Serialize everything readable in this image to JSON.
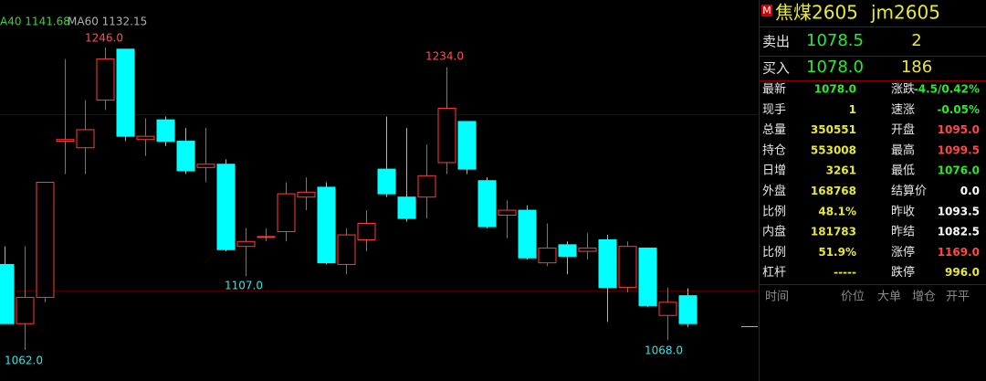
{
  "chart_data": {
    "type": "candlestick",
    "ma_labels": [
      "A40 1141.68",
      "MA60 1132.15"
    ],
    "extreme_labels": [
      "1246.0",
      "1234.0",
      "1107.0",
      "1062.0",
      "1068.0"
    ],
    "open": [
      1114,
      1078,
      1094,
      1189,
      1185,
      1214,
      1245,
      1190,
      1202,
      1189,
      1173,
      1175,
      1125,
      1131,
      1134,
      1155,
      1161,
      1114,
      1129,
      1172,
      1155,
      1155,
      1176,
      1201,
      1165,
      1144,
      1147,
      1115,
      1126,
      1122,
      1129,
      1100,
      1124,
      1083,
      1095
    ],
    "high": [
      1125,
      1125,
      1164,
      1239,
      1214,
      1246,
      1245,
      1203,
      1204,
      1197,
      1197,
      1178,
      1136,
      1136,
      1164,
      1167,
      1164,
      1136,
      1147,
      1204,
      1197,
      1187,
      1234,
      1201,
      1167,
      1153,
      1150,
      1139,
      1128,
      1133,
      1132,
      1128,
      1124,
      1100,
      1099.5
    ],
    "low": [
      1078,
      1062,
      1091,
      1169,
      1169,
      1208,
      1189,
      1180,
      1186,
      1169,
      1164,
      1122,
      1107,
      1128,
      1128,
      1147,
      1114,
      1108,
      1122,
      1155,
      1140,
      1142,
      1169,
      1169,
      1136,
      1130,
      1117,
      1113,
      1108,
      1117,
      1079,
      1097,
      1088,
      1068,
      1076
    ],
    "close": [
      1078,
      1094,
      1164,
      1190,
      1196,
      1239,
      1192,
      1192,
      1189,
      1171,
      1175,
      1123,
      1128,
      1131,
      1157,
      1158,
      1115,
      1132,
      1139,
      1157,
      1142,
      1168,
      1209,
      1172,
      1137,
      1147,
      1118,
      1124,
      1119,
      1124,
      1100,
      1125,
      1089,
      1091,
      1078
    ]
  },
  "quote": {
    "badge": "M",
    "name": "焦煤2605",
    "code": "jm2605",
    "sell": {
      "label": "卖出",
      "price": "1078.5",
      "volume": "2"
    },
    "buy": {
      "label": "买入",
      "price": "1078.0",
      "volume": "186"
    },
    "rows": [
      [
        "最新",
        "1078.0",
        "涨跌",
        "-4.5/0.42%"
      ],
      [
        "现手",
        "1",
        "速涨",
        "-0.05%"
      ],
      [
        "总量",
        "350551",
        "开盘",
        "1095.0"
      ],
      [
        "持仓",
        "553008",
        "最高",
        "1099.5"
      ],
      [
        "日增",
        "3261",
        "最低",
        "1076.0"
      ],
      [
        "外盘",
        "168768",
        "结算价",
        "0.0"
      ],
      [
        "比例",
        "48.1%",
        "昨收",
        "1093.5"
      ],
      [
        "内盘",
        "181783",
        "昨结",
        "1082.5"
      ],
      [
        "比例",
        "51.9%",
        "涨停",
        "1169.0"
      ],
      [
        "杠杆",
        "-----",
        "跌停",
        "996.0"
      ]
    ],
    "trades_header": [
      "时间",
      "价位",
      "大单",
      "增仓",
      "开平"
    ]
  }
}
